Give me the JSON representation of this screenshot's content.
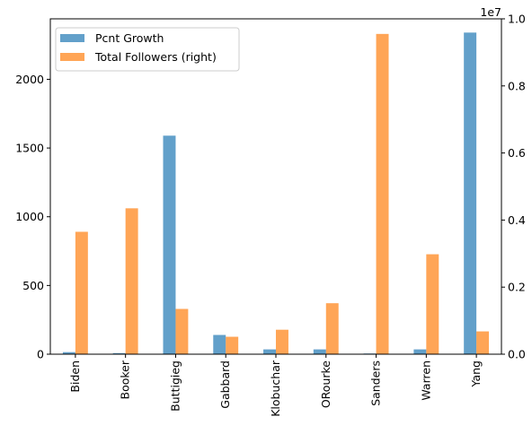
{
  "chart_data": {
    "type": "bar",
    "categories": [
      "Biden",
      "Booker",
      "Buttigieg",
      "Gabbard",
      "Klobuchar",
      "ORourke",
      "Sanders",
      "Warren",
      "Yang"
    ],
    "series": [
      {
        "name": "Pcnt Growth",
        "axis": "left",
        "color": "#1f77b4",
        "values": [
          15,
          8,
          1590,
          140,
          35,
          35,
          5,
          35,
          2340
        ]
      },
      {
        "name": "Total Followers (right)",
        "axis": "right",
        "color": "#ff7f0e",
        "values": [
          3650000,
          4350000,
          1350000,
          520000,
          730000,
          1520000,
          9550000,
          2980000,
          680000
        ]
      }
    ],
    "ylim_left": [
      0,
      2440
    ],
    "ylim_right": [
      0,
      10000000
    ],
    "left_ticks": [
      0,
      500,
      1000,
      1500,
      2000
    ],
    "left_tick_labels": [
      "0",
      "500",
      "1000",
      "1500",
      "2000"
    ],
    "right_ticks": [
      0,
      2000000,
      4000000,
      6000000,
      8000000,
      10000000
    ],
    "right_tick_labels": [
      "0.0",
      "0.2",
      "0.4",
      "0.6",
      "0.8",
      "1.0"
    ],
    "right_offset_label": "1e7",
    "legend_position": "upper-left",
    "grid": false
  }
}
